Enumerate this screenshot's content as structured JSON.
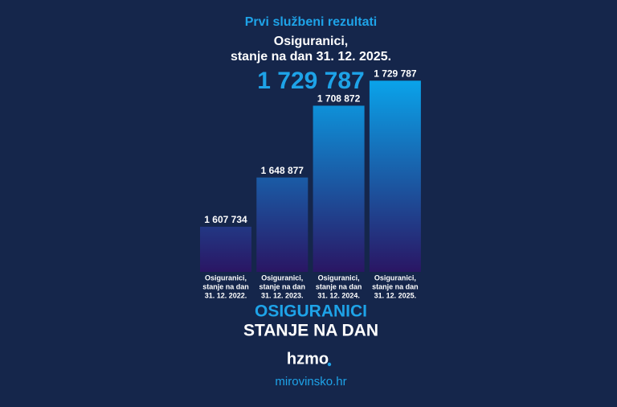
{
  "chart_data": {
    "type": "bar",
    "title": "Prvi službeni rezultati",
    "subtitle": [
      "Osiguranici,",
      "stanje na dan 31. 12. 2025."
    ],
    "headline": "1 729 787",
    "categories": [
      [
        "Osiguranici,",
        "stanje na dan",
        "31. 12. 2022."
      ],
      [
        "Osiguranici,",
        "stanje na dan",
        "31. 12. 2023."
      ],
      [
        "Osiguranici,",
        "stanje na dan",
        "31. 12. 2024."
      ],
      [
        "Osiguranici,",
        "stanje na dan",
        "31. 12. 2025."
      ]
    ],
    "values": [
      1607734,
      1648877,
      1708872,
      1729787
    ],
    "value_labels": [
      "1 607 734",
      "1 648 877",
      "1 708 872",
      "1 729 787"
    ],
    "ylim": [
      1570000,
      1730000
    ],
    "gradient": [
      "#0aa3ea",
      "#2a1664"
    ],
    "footer": {
      "heading": "OSIGURANICI",
      "subheading": "STANJE NA DAN",
      "logo": "hzmo",
      "website": "mirovinsko.hr"
    }
  }
}
